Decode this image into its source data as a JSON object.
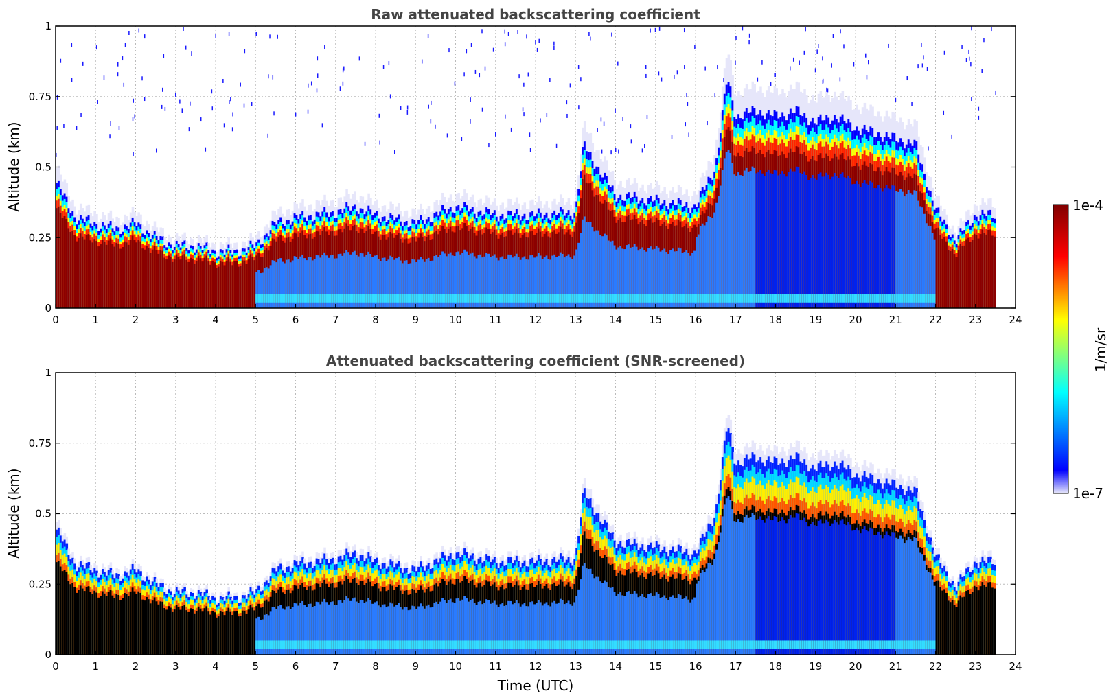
{
  "chart_data": [
    {
      "type": "heatmap",
      "title": "Raw attenuated backscattering coefficient",
      "xlabel": "",
      "ylabel": "Altitude (km)",
      "xlim": [
        0,
        24
      ],
      "ylim": [
        0,
        1
      ],
      "x_ticks": [
        "0",
        "1",
        "2",
        "3",
        "4",
        "5",
        "6",
        "7",
        "8",
        "9",
        "10",
        "11",
        "12",
        "13",
        "14",
        "15",
        "16",
        "17",
        "18",
        "19",
        "20",
        "21",
        "22",
        "23",
        "24"
      ],
      "y_ticks": [
        "0",
        "0.25",
        "0.5",
        "0.75",
        "1"
      ],
      "grid": true,
      "data_extent_hours": [
        0,
        23.5
      ],
      "layer_top_km": {
        "time_utc": [
          0,
          0.5,
          1,
          1.5,
          2,
          2.5,
          3,
          3.5,
          4,
          4.5,
          5,
          5.5,
          6,
          7,
          7.5,
          8,
          9,
          10,
          11,
          12,
          13,
          13.2,
          14,
          15,
          16,
          16.5,
          16.8,
          17,
          17.5,
          18,
          18.5,
          19,
          19.5,
          20,
          20.5,
          21,
          21.5,
          22,
          22.5,
          23,
          23.5
        ],
        "altitude_km": [
          0.45,
          0.32,
          0.3,
          0.28,
          0.3,
          0.25,
          0.22,
          0.22,
          0.2,
          0.2,
          0.22,
          0.3,
          0.32,
          0.34,
          0.36,
          0.33,
          0.3,
          0.36,
          0.33,
          0.33,
          0.34,
          0.58,
          0.4,
          0.38,
          0.36,
          0.5,
          0.82,
          0.68,
          0.7,
          0.68,
          0.7,
          0.66,
          0.68,
          0.64,
          0.62,
          0.6,
          0.58,
          0.35,
          0.24,
          0.33,
          0.33
        ]
      }
    },
    {
      "type": "heatmap",
      "title": "Attenuated backscattering coefficient (SNR-screened)",
      "xlabel": "Time (UTC)",
      "ylabel": "Altitude (km)",
      "xlim": [
        0,
        24
      ],
      "ylim": [
        0,
        1
      ],
      "x_ticks": [
        "0",
        "1",
        "2",
        "3",
        "4",
        "5",
        "6",
        "7",
        "8",
        "9",
        "10",
        "11",
        "12",
        "13",
        "14",
        "15",
        "16",
        "17",
        "18",
        "19",
        "20",
        "21",
        "22",
        "23",
        "24"
      ],
      "y_ticks": [
        "0",
        "0.25",
        "0.5",
        "0.75",
        "1"
      ],
      "grid": true,
      "data_extent_hours": [
        0,
        23.5
      ]
    }
  ],
  "colorbar": {
    "label": "1/m/sr",
    "max_label": "1e-4",
    "min_label": "1e-7",
    "colormap": "jet",
    "colors": [
      "#e8e8fa",
      "#0000ff",
      "#00ffff",
      "#ffff00",
      "#ff0000",
      "#800000"
    ]
  }
}
